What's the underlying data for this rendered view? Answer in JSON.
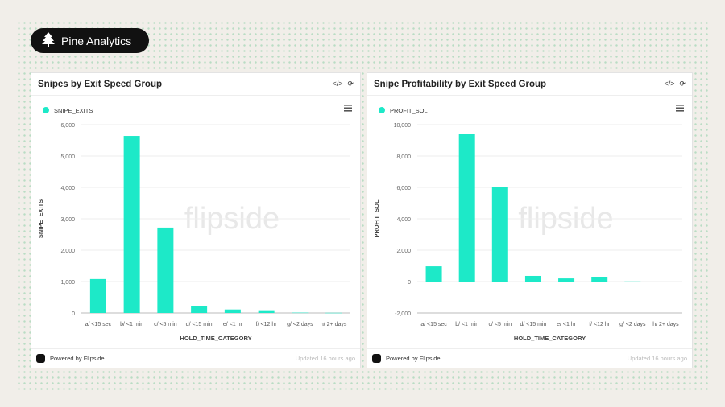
{
  "brand": {
    "name": "Pine Analytics",
    "icon": "pine-tree-icon"
  },
  "accent": "#1de9c8",
  "watermark": "flipside",
  "charts": [
    {
      "title": "Snipes by Exit Speed Group",
      "footer": {
        "powered": "Powered by Flipside",
        "updated": "Updated 16 hours ago"
      }
    },
    {
      "title": "Snipe Profitability by Exit Speed Group",
      "footer": {
        "powered": "Powered by Flipside",
        "updated": "Updated 16 hours ago"
      }
    }
  ],
  "chart_data": [
    {
      "type": "bar",
      "title": "Snipes by Exit Speed Group",
      "xlabel": "HOLD_TIME_CATEGORY",
      "ylabel": "SNIPE_EXITS",
      "legend": "top-left",
      "grid": true,
      "categories": [
        "a/ <15 sec",
        "b/ <1 min",
        "c/ <5 min",
        "d/ <15 min",
        "e/ <1 hr",
        "f/ <12 hr",
        "g/ <2 days",
        "h/ 2+ days"
      ],
      "series": [
        {
          "name": "SNIPE_EXITS",
          "values": [
            1080,
            5640,
            2720,
            230,
            110,
            60,
            10,
            5
          ]
        }
      ],
      "ylim": [
        0,
        6000
      ],
      "yticks": [
        0,
        1000,
        2000,
        3000,
        4000,
        5000,
        6000
      ],
      "ytick_labels": [
        "0",
        "1,000",
        "2,000",
        "3,000",
        "4,000",
        "5,000",
        "6,000"
      ]
    },
    {
      "type": "bar",
      "title": "Snipe Profitability by Exit Speed Group",
      "xlabel": "HOLD_TIME_CATEGORY",
      "ylabel": "PROFIT_SOL",
      "legend": "top-left",
      "grid": true,
      "categories": [
        "a/ <15 sec",
        "b/ <1 min",
        "c/ <5 min",
        "d/ <15 min",
        "e/ <1 hr",
        "f/ <12 hr",
        "g/ <2 days",
        "h/ 2+ days"
      ],
      "series": [
        {
          "name": "PROFIT_SOL",
          "values": [
            970,
            9430,
            6050,
            360,
            200,
            260,
            10,
            0
          ]
        }
      ],
      "ylim": [
        -2000,
        10000
      ],
      "yticks": [
        -2000,
        0,
        2000,
        4000,
        6000,
        8000,
        10000
      ],
      "ytick_labels": [
        "-2,000",
        "0",
        "2,000",
        "4,000",
        "6,000",
        "8,000",
        "10,000"
      ]
    }
  ]
}
